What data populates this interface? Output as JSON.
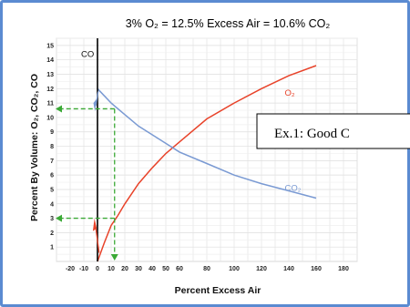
{
  "chart_data": {
    "type": "line",
    "title": "3% O₂ = 12.5% Excess Air = 10.6% CO₂",
    "xlabel": "Percent Excess Air",
    "ylabel": "Percent By Volume: O₂, CO₂, CO",
    "xlim": [
      -30,
      190
    ],
    "ylim": [
      0,
      15.5
    ],
    "x_ticks": [
      "-20",
      "-10",
      "0",
      "10",
      "20",
      "30",
      "40",
      "50",
      "60",
      "80",
      "100",
      "120",
      "140",
      "160",
      "180"
    ],
    "x_tick_values": [
      -20,
      -10,
      0,
      10,
      20,
      30,
      40,
      50,
      60,
      80,
      100,
      120,
      140,
      160,
      180
    ],
    "y_ticks": [
      "1",
      "2",
      "3",
      "4",
      "5",
      "6",
      "7",
      "8",
      "9",
      "10",
      "11",
      "12",
      "13",
      "14",
      "15"
    ],
    "grid": true,
    "series": [
      {
        "name": "O₂",
        "color": "#e8432a",
        "x": [
          0,
          5,
          10,
          15,
          20,
          30,
          40,
          50,
          60,
          80,
          100,
          120,
          140,
          160
        ],
        "y": [
          0,
          1.3,
          2.5,
          3.2,
          4.0,
          5.4,
          6.5,
          7.5,
          8.3,
          9.9,
          11.0,
          12.0,
          12.9,
          13.6
        ]
      },
      {
        "name": "CO₂",
        "color": "#7a9ad3",
        "x": [
          0,
          5,
          10,
          15,
          20,
          30,
          40,
          50,
          60,
          80,
          100,
          120,
          140,
          160
        ],
        "y": [
          12.0,
          11.5,
          11.0,
          10.6,
          10.2,
          9.4,
          8.8,
          8.2,
          7.6,
          6.8,
          6.0,
          5.4,
          4.9,
          4.4
        ]
      },
      {
        "name": "CO",
        "color": "#000000",
        "x": [
          0,
          0
        ],
        "y": [
          0,
          15.5
        ]
      }
    ],
    "annotation": "Ex.1: Good C",
    "guide": {
      "excess_air": 12.5,
      "o2": 3,
      "co2": 10.6,
      "color": "#3aa935"
    }
  }
}
